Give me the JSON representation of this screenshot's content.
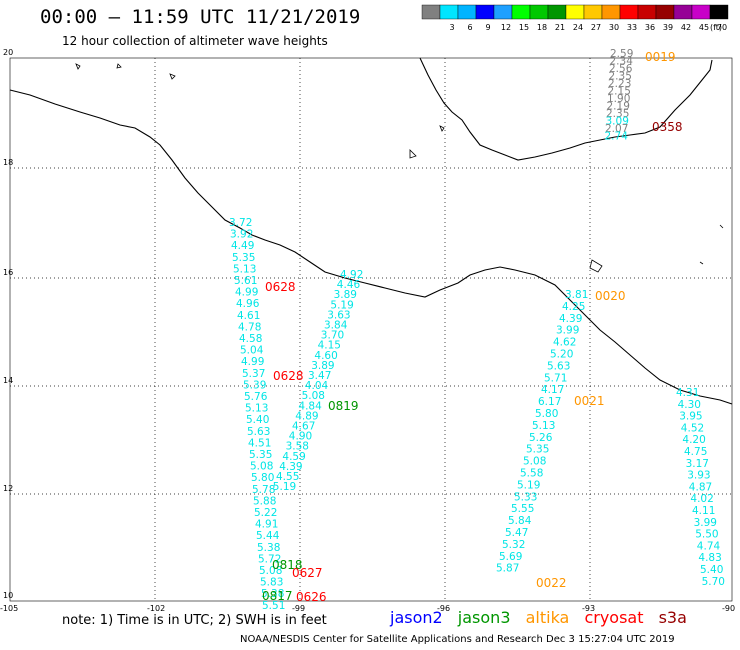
{
  "header": {
    "title": "00:00 — 11:59 UTC 11/21/2019",
    "subtitle": "12 hour collection of altimeter wave heights"
  },
  "legend": {
    "unit_label": "(ft)",
    "bins": [
      {
        "value": "",
        "color": "#808080"
      },
      {
        "value": "3",
        "color": "#00e5ff"
      },
      {
        "value": "6",
        "color": "#00b4ff"
      },
      {
        "value": "9",
        "color": "#0000ff"
      },
      {
        "value": "12",
        "color": "#1ea0ff"
      },
      {
        "value": "15",
        "color": "#00ff00"
      },
      {
        "value": "18",
        "color": "#00c800"
      },
      {
        "value": "21",
        "color": "#009600"
      },
      {
        "value": "24",
        "color": "#ffff00"
      },
      {
        "value": "27",
        "color": "#ffc800"
      },
      {
        "value": "30",
        "color": "#ff9600"
      },
      {
        "value": "33",
        "color": "#ff0000"
      },
      {
        "value": "36",
        "color": "#c80000"
      },
      {
        "value": "39",
        "color": "#960000"
      },
      {
        "value": "42",
        "color": "#960096"
      },
      {
        "value": "45",
        "color": "#c800c8"
      },
      {
        "value": "70",
        "color": "#000000"
      }
    ]
  },
  "axes": {
    "lon_labels": [
      "-105",
      "-102",
      "-99",
      "-96",
      "-93",
      "-90"
    ],
    "lat_labels": [
      "20",
      "18",
      "16",
      "14",
      "12",
      "10"
    ]
  },
  "tracks": {
    "color": "#00e5e5",
    "values": [
      "2.59",
      "2.34",
      "2.56",
      "2.35",
      "2.23",
      "2.15",
      "1.90",
      "2.19",
      "2.35",
      "3.09",
      "2.07",
      "2.74",
      "3.72",
      "3.92",
      "4.49",
      "5.35",
      "5.13",
      "5.61",
      "4.99",
      "4.96",
      "4.61",
      "4.78",
      "4.58",
      "5.04",
      "4.99",
      "5.37",
      "5.39",
      "5.76",
      "5.13",
      "5.40",
      "5.63",
      "4.51",
      "5.35",
      "5.08",
      "5.80",
      "5.78",
      "5.88",
      "5.22",
      "4.91",
      "5.44",
      "5.38",
      "5.72",
      "5.08",
      "5.83",
      "5.38",
      "5.51",
      "4.92",
      "4.46",
      "3.89",
      "5.19",
      "3.63",
      "3.84",
      "3.70",
      "4.15",
      "4.60",
      "3.89",
      "3.47",
      "4.04",
      "5.08",
      "4.84",
      "4.89",
      "4.67",
      "4.90",
      "3.58",
      "4.59",
      "4.39",
      "4.55",
      "5.19",
      "3.81",
      "4.25",
      "4.39",
      "3.99",
      "4.62",
      "5.20",
      "5.63",
      "5.71",
      "4.17",
      "6.17",
      "5.80",
      "5.13",
      "5.26",
      "5.35",
      "5.08",
      "5.58",
      "5.19",
      "5.33",
      "5.55",
      "5.84",
      "5.47",
      "5.32",
      "5.69",
      "5.87",
      "4.31",
      "4.30",
      "3.95",
      "4.52",
      "4.20",
      "4.75",
      "3.17",
      "3.93",
      "4.87",
      "4.02",
      "4.11",
      "3.99",
      "5.50",
      "4.74",
      "4.83",
      "5.40",
      "5.70"
    ]
  },
  "pass_labels": [
    {
      "text": "0019",
      "color": "#ff9600"
    },
    {
      "text": "0358",
      "color": "#960000"
    },
    {
      "text": "0628",
      "color": "#ff0000"
    },
    {
      "text": "0628",
      "color": "#ff0000"
    },
    {
      "text": "0020",
      "color": "#ff9600"
    },
    {
      "text": "0021",
      "color": "#ff9600"
    },
    {
      "text": "0819",
      "color": "#009600"
    },
    {
      "text": "0818",
      "color": "#009600"
    },
    {
      "text": "0627",
      "color": "#ff0000"
    },
    {
      "text": "0817",
      "color": "#009600"
    },
    {
      "text": "0626",
      "color": "#ff0000"
    },
    {
      "text": "0022",
      "color": "#ff9600"
    }
  ],
  "footer": {
    "note": "note: 1) Time is in UTC; 2) SWH is in feet",
    "missions": [
      {
        "name": "jason2",
        "color": "#0000ff"
      },
      {
        "name": "jason3",
        "color": "#009600"
      },
      {
        "name": "altika",
        "color": "#ff9600"
      },
      {
        "name": "cryosat",
        "color": "#ff0000"
      },
      {
        "name": "s3a",
        "color": "#960000"
      }
    ],
    "credit": "NOAA/NESDIS Center for Satellite Applications and Research    Dec  3 15:27:04 UTC 2019"
  }
}
